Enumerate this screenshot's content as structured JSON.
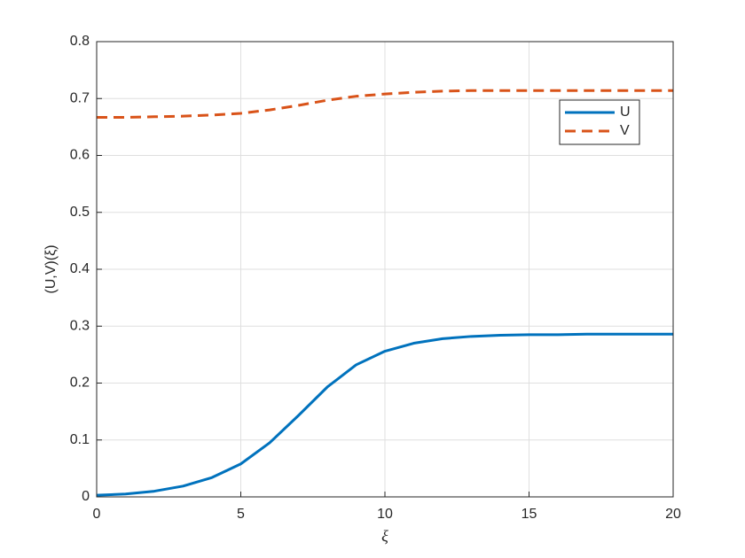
{
  "chart_data": {
    "type": "line",
    "xlabel": "ξ",
    "ylabel": "(U,V)(ξ)",
    "x": [
      0,
      1,
      2,
      3,
      4,
      5,
      6,
      7,
      8,
      9,
      10,
      11,
      12,
      13,
      14,
      15,
      16,
      17,
      18,
      19,
      20
    ],
    "series": [
      {
        "name": "U",
        "color": "#0072bd",
        "dash": false,
        "values": [
          0.003,
          0.005,
          0.01,
          0.019,
          0.034,
          0.058,
          0.095,
          0.143,
          0.193,
          0.232,
          0.256,
          0.27,
          0.278,
          0.282,
          0.284,
          0.285,
          0.285,
          0.286,
          0.286,
          0.286,
          0.286
        ]
      },
      {
        "name": "V",
        "color": "#d95319",
        "dash": true,
        "values": [
          0.667,
          0.667,
          0.668,
          0.669,
          0.671,
          0.674,
          0.68,
          0.688,
          0.697,
          0.704,
          0.708,
          0.711,
          0.713,
          0.714,
          0.714,
          0.714,
          0.714,
          0.714,
          0.714,
          0.714,
          0.714
        ]
      }
    ],
    "xlim": [
      0,
      20
    ],
    "xticks": [
      0,
      5,
      10,
      15,
      20
    ],
    "ylim": [
      0,
      0.8
    ],
    "yticks": [
      0,
      0.1,
      0.2,
      0.3,
      0.4,
      0.5,
      0.6,
      0.7,
      0.8
    ],
    "grid": true,
    "legend": "northeast"
  }
}
